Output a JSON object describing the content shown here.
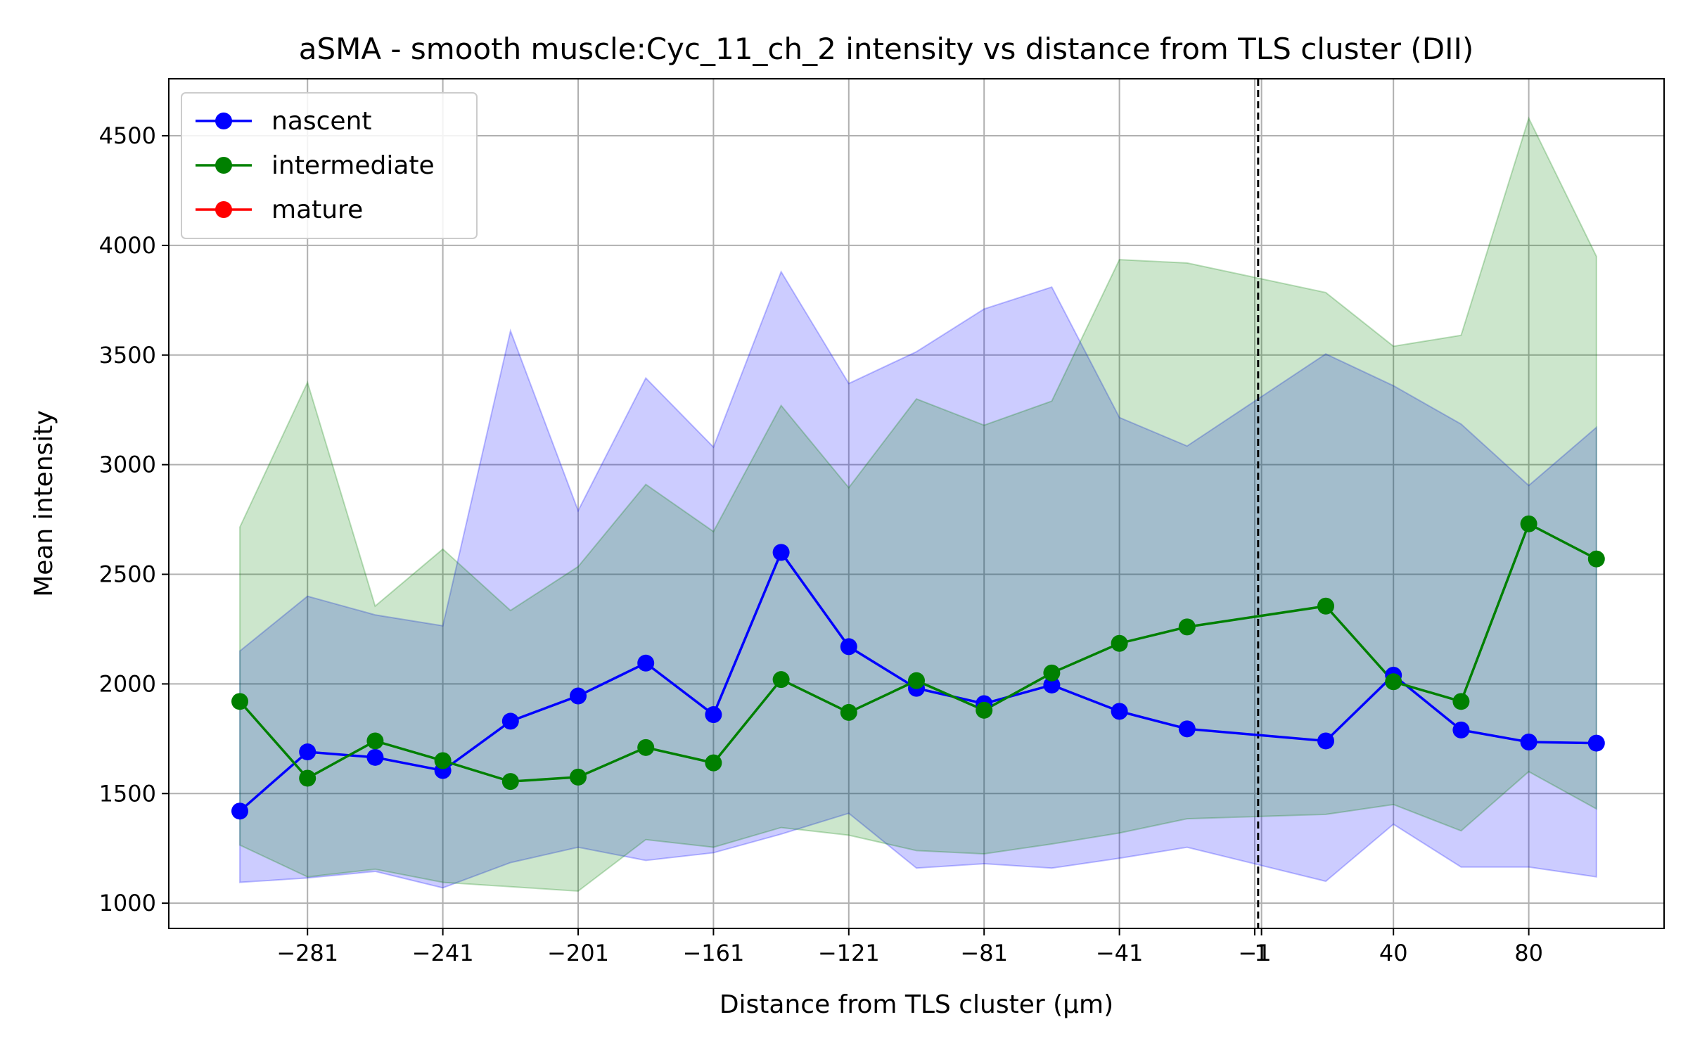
{
  "chart_data": {
    "type": "line",
    "title": "aSMA - smooth muscle:Cyc_11_ch_2 intensity vs distance from TLS cluster (DII)",
    "xlabel": "Distance from TLS cluster (μm)",
    "ylabel": "Mean intensity",
    "xlim": [
      -322,
      120
    ],
    "ylim": [
      885,
      4760
    ],
    "x_ticks": [
      -281,
      -241,
      -201,
      -161,
      -121,
      -81,
      -41,
      -1,
      1,
      40,
      80
    ],
    "x_tick_labels": [
      "−281",
      "−241",
      "−201",
      "−161",
      "−121",
      "−81",
      "−41",
      "−1",
      "1",
      "40",
      "80"
    ],
    "y_ticks": [
      1000,
      1500,
      2000,
      2500,
      3000,
      3500,
      4000,
      4500
    ],
    "y_tick_labels": [
      "1000",
      "1500",
      "2000",
      "2500",
      "3000",
      "3500",
      "4000",
      "4500"
    ],
    "grid": true,
    "legend_position": "top-left",
    "reference_line_x": 0,
    "series": [
      {
        "name": "nascent",
        "color": "#0000ff",
        "x": [
          -301,
          -281,
          -261,
          -241,
          -221,
          -201,
          -181,
          -161,
          -141,
          -121,
          -101,
          -81,
          -61,
          -41,
          -21,
          20,
          40,
          60,
          80,
          100
        ],
        "y": [
          1420,
          1690,
          1665,
          1605,
          1830,
          1945,
          2095,
          1860,
          2600,
          2170,
          1980,
          1910,
          1995,
          1875,
          1795,
          1740,
          2040,
          1790,
          1735,
          1730
        ],
        "band_upper": [
          2150,
          2400,
          2315,
          2265,
          3610,
          2790,
          3395,
          3080,
          3880,
          3370,
          3515,
          3710,
          3810,
          3215,
          3085,
          3505,
          3360,
          3185,
          2905,
          3170
        ],
        "band_lower": [
          1095,
          1115,
          1145,
          1070,
          1185,
          1255,
          1195,
          1230,
          1315,
          1410,
          1160,
          1180,
          1160,
          1205,
          1255,
          1100,
          1360,
          1165,
          1165,
          1120
        ]
      },
      {
        "name": "intermediate",
        "color": "#008000",
        "x": [
          -301,
          -281,
          -261,
          -241,
          -221,
          -201,
          -181,
          -161,
          -141,
          -121,
          -101,
          -81,
          -61,
          -41,
          -21,
          20,
          40,
          60,
          80,
          100
        ],
        "y": [
          1920,
          1570,
          1740,
          1650,
          1555,
          1575,
          1710,
          1640,
          2020,
          1870,
          2015,
          1880,
          2050,
          2185,
          2260,
          2355,
          2010,
          1920,
          2730,
          2570
        ],
        "band_upper": [
          2715,
          3375,
          2355,
          2615,
          2335,
          2535,
          2910,
          2695,
          3270,
          2895,
          3300,
          3180,
          3290,
          3935,
          3920,
          3785,
          3540,
          3590,
          4580,
          3950
        ],
        "band_lower": [
          1265,
          1120,
          1155,
          1095,
          1075,
          1055,
          1290,
          1255,
          1345,
          1310,
          1240,
          1225,
          1270,
          1320,
          1385,
          1405,
          1450,
          1330,
          1600,
          1430
        ]
      },
      {
        "name": "mature",
        "color": "#ff0000",
        "x": [],
        "y": [],
        "band_upper": [],
        "band_lower": []
      }
    ]
  }
}
